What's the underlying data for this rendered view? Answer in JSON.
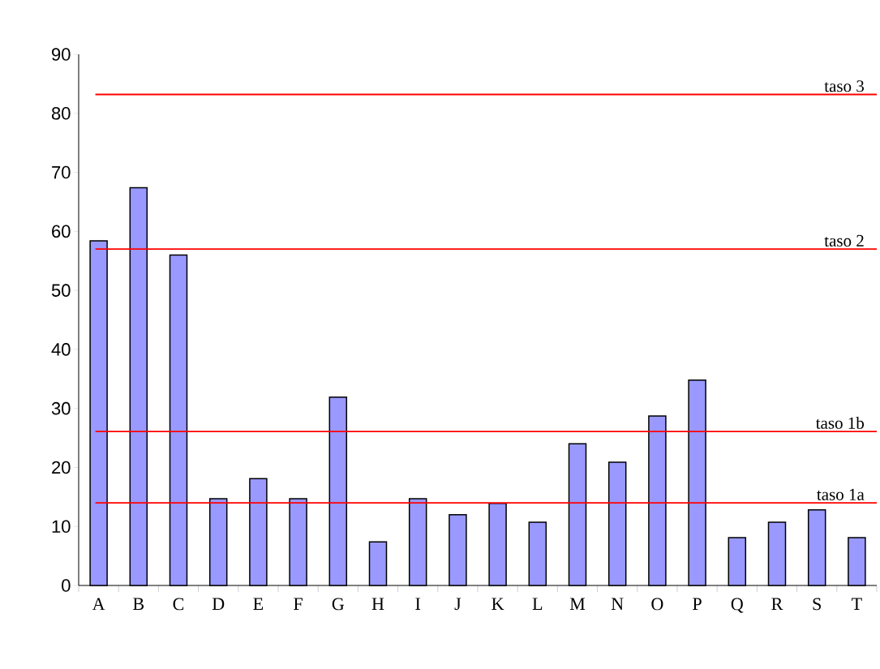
{
  "chart_data": {
    "type": "bar",
    "categories": [
      "A",
      "B",
      "C",
      "D",
      "E",
      "F",
      "G",
      "H",
      "I",
      "J",
      "K",
      "L",
      "M",
      "N",
      "O",
      "P",
      "Q",
      "R",
      "S",
      "T"
    ],
    "values": [
      58.4,
      67.4,
      56.0,
      14.7,
      18.1,
      14.7,
      31.9,
      7.4,
      14.7,
      12.0,
      13.9,
      10.7,
      24.0,
      20.9,
      28.7,
      34.8,
      8.1,
      10.7,
      12.8,
      8.1
    ],
    "color": "#9999ff",
    "ylim": [
      0,
      90
    ],
    "yticks": [
      0,
      10,
      20,
      30,
      40,
      50,
      60,
      70,
      80,
      90
    ],
    "grid": false,
    "ref_lines": [
      {
        "axis": "y",
        "value": 83.2,
        "label": "taso 3",
        "color": "#ff0000"
      },
      {
        "axis": "y",
        "value": 57.0,
        "label": "taso 2",
        "color": "#ff0000"
      },
      {
        "axis": "y",
        "value": 26.1,
        "label": "taso 1b",
        "color": "#ff0000"
      },
      {
        "axis": "y",
        "value": 14.0,
        "label": "taso 1a",
        "color": "#ff0000"
      }
    ]
  }
}
